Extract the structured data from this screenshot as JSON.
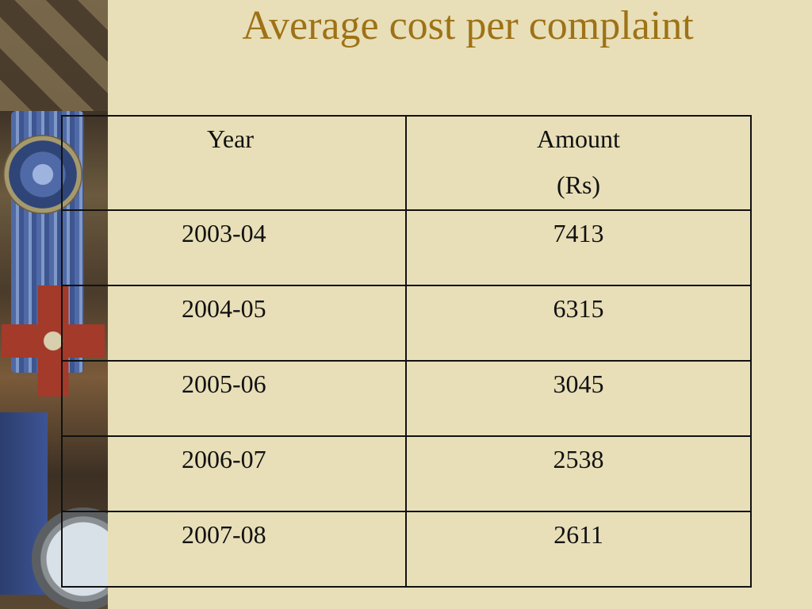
{
  "slide": {
    "title": "Average cost per complaint"
  },
  "table": {
    "headers": {
      "year": "Year",
      "amount_line1": "Amount",
      "amount_line2": "(Rs)"
    },
    "rows": [
      {
        "year": "2003-04",
        "amount": "7413"
      },
      {
        "year": "2004-05",
        "amount": "6315"
      },
      {
        "year": "2005-06",
        "amount": "3045"
      },
      {
        "year": "2006-07",
        "amount": "2538"
      },
      {
        "year": "2007-08",
        "amount": "2611"
      }
    ]
  },
  "theme": {
    "background": "#e8dfb8",
    "title_color": "#9e7216"
  }
}
